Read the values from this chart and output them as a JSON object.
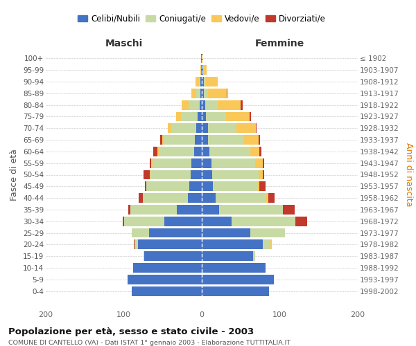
{
  "age_groups": [
    "100+",
    "95-99",
    "90-94",
    "85-89",
    "80-84",
    "75-79",
    "70-74",
    "65-69",
    "60-64",
    "55-59",
    "50-54",
    "45-49",
    "40-44",
    "35-39",
    "30-34",
    "25-29",
    "20-24",
    "15-19",
    "10-14",
    "5-9",
    "0-4"
  ],
  "birth_years": [
    "≤ 1902",
    "1903-1907",
    "1908-1912",
    "1913-1917",
    "1918-1922",
    "1923-1927",
    "1928-1932",
    "1933-1937",
    "1938-1942",
    "1943-1947",
    "1948-1952",
    "1953-1957",
    "1958-1962",
    "1963-1967",
    "1968-1972",
    "1973-1977",
    "1978-1982",
    "1983-1987",
    "1988-1992",
    "1993-1997",
    "1998-2002"
  ],
  "male_celibi": [
    1,
    1,
    2,
    2,
    3,
    5,
    7,
    9,
    10,
    13,
    14,
    16,
    18,
    32,
    48,
    68,
    82,
    74,
    88,
    95,
    90
  ],
  "male_coniugati": [
    0,
    0,
    2,
    5,
    14,
    22,
    32,
    40,
    45,
    50,
    52,
    55,
    58,
    60,
    52,
    22,
    4,
    1,
    0,
    0,
    0
  ],
  "male_vedovi": [
    0,
    1,
    4,
    6,
    9,
    6,
    5,
    2,
    2,
    2,
    1,
    0,
    0,
    0,
    0,
    0,
    0,
    0,
    0,
    0,
    0
  ],
  "male_divorziati": [
    0,
    0,
    0,
    0,
    0,
    0,
    0,
    2,
    5,
    2,
    8,
    2,
    5,
    2,
    1,
    0,
    1,
    0,
    0,
    0,
    0
  ],
  "female_celibi": [
    1,
    2,
    3,
    3,
    4,
    5,
    8,
    8,
    10,
    12,
    13,
    14,
    18,
    22,
    38,
    62,
    78,
    66,
    82,
    92,
    86
  ],
  "female_coniugati": [
    0,
    0,
    2,
    5,
    16,
    26,
    36,
    45,
    52,
    56,
    60,
    58,
    65,
    82,
    82,
    45,
    10,
    2,
    0,
    0,
    0
  ],
  "female_vedovi": [
    1,
    4,
    15,
    24,
    30,
    30,
    25,
    20,
    12,
    10,
    5,
    2,
    2,
    0,
    0,
    0,
    2,
    0,
    0,
    0,
    0
  ],
  "female_divorziati": [
    0,
    0,
    0,
    1,
    2,
    2,
    1,
    2,
    2,
    2,
    2,
    8,
    8,
    15,
    15,
    0,
    0,
    0,
    0,
    0,
    0
  ],
  "colors": {
    "celibi": "#4472c4",
    "coniugati": "#c8daa4",
    "vedovi": "#f9c858",
    "divorziati": "#c0392b"
  },
  "title1": "Popolazione per età, sesso e stato civile - 2003",
  "title2": "COMUNE DI CANTELLO (VA) - Dati ISTAT 1° gennaio 2003 - Elaborazione TUTTITALIA.IT",
  "label_maschi": "Maschi",
  "label_femmine": "Femmine",
  "ylabel_left": "Fasce di età",
  "ylabel_right": "Anni di nascita",
  "xlim": 200,
  "bg": "#ffffff",
  "grid_color": "#cccccc"
}
